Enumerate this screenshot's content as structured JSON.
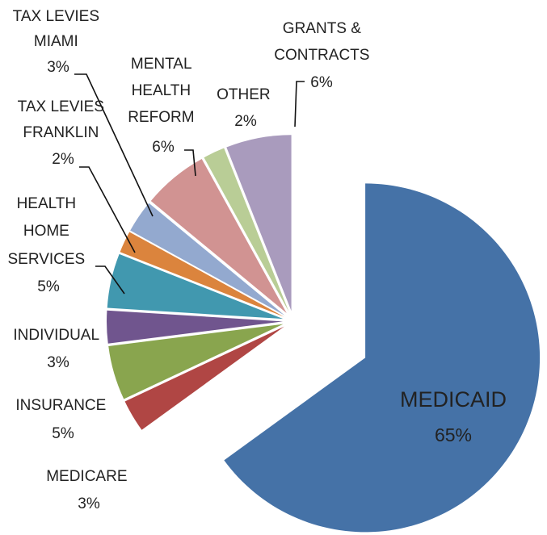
{
  "chart_data": {
    "type": "pie",
    "exploded": true,
    "legend": "none",
    "slices": [
      {
        "name": "MEDICAID",
        "value": 65,
        "label": "65%",
        "color": "#4572a7"
      },
      {
        "name": "MEDICARE",
        "value": 3,
        "label": "3%",
        "color": "#b04644"
      },
      {
        "name": "INSURANCE",
        "value": 5,
        "label": "5%",
        "color": "#89a54e"
      },
      {
        "name": "INDIVIDUAL",
        "value": 3,
        "label": "3%",
        "color": "#70558e"
      },
      {
        "name": "HEALTH HOME SERVICES",
        "value": 5,
        "label": "5%",
        "color": "#4198af"
      },
      {
        "name": "TAX LEVIES FRANKLIN",
        "value": 2,
        "label": "2%",
        "color": "#db843d"
      },
      {
        "name": "TAX LEVIES MIAMI",
        "value": 3,
        "label": "3%",
        "color": "#93a9cf"
      },
      {
        "name": "MENTAL HEALTH REFORM",
        "value": 6,
        "label": "6%",
        "color": "#d19392"
      },
      {
        "name": "OTHER",
        "value": 2,
        "label": "2%",
        "color": "#b9cd96"
      },
      {
        "name": "GRANTS & CONTRACTS",
        "value": 6,
        "label": "6%",
        "color": "#a99bbd"
      }
    ]
  }
}
